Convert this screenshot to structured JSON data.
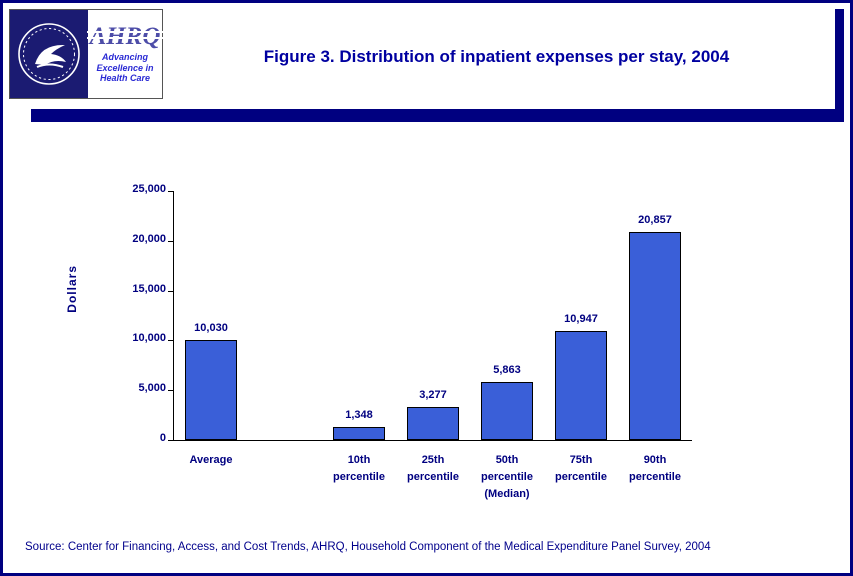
{
  "page": {
    "background": "#FFFFFF",
    "border_color": "#000080",
    "accent_color": "#000080"
  },
  "header": {
    "title": "Figure 3. Distribution of inpatient expenses per stay, 2004",
    "logos": {
      "hhs_seal": "U.S. Department of Health & Human Services seal",
      "ahrq_text": "AHRQ",
      "ahrq_tagline": "Advancing\nExcellence in\nHealth Care"
    }
  },
  "chart_data": {
    "type": "bar",
    "title": "Figure 3. Distribution of inpatient expenses per stay, 2004",
    "ylabel": "Dollars",
    "xlabel": "",
    "ylim": [
      0,
      25000
    ],
    "yticks": [
      0,
      5000,
      10000,
      15000,
      20000,
      25000
    ],
    "ytick_labels": [
      "0",
      "5,000",
      "10,000",
      "15,000",
      "20,000",
      "25,000"
    ],
    "categories": [
      "Average",
      "10th percentile",
      "25th percentile",
      "50th percentile (Median)",
      "75th percentile",
      "90th percentile"
    ],
    "category_labels": [
      "Average",
      "10th\npercentile",
      "25th\npercentile",
      "50th\npercentile\n(Median)",
      "75th\npercentile",
      "90th\npercentile"
    ],
    "values": [
      10030,
      1348,
      3277,
      5863,
      10947,
      20857
    ],
    "value_labels": [
      "10,030",
      "1,348",
      "3,277",
      "5,863",
      "10,947",
      "20,857"
    ],
    "bar_color": "#3A5FD8",
    "bar_border_color": "#000000",
    "label_color": "#000080",
    "grid": false,
    "legend": false,
    "gap_after_index": 0
  },
  "footer": {
    "source": "Source: Center for Financing, Access, and Cost Trends, AHRQ, Household Component of the Medical Expenditure Panel Survey, 2004"
  }
}
